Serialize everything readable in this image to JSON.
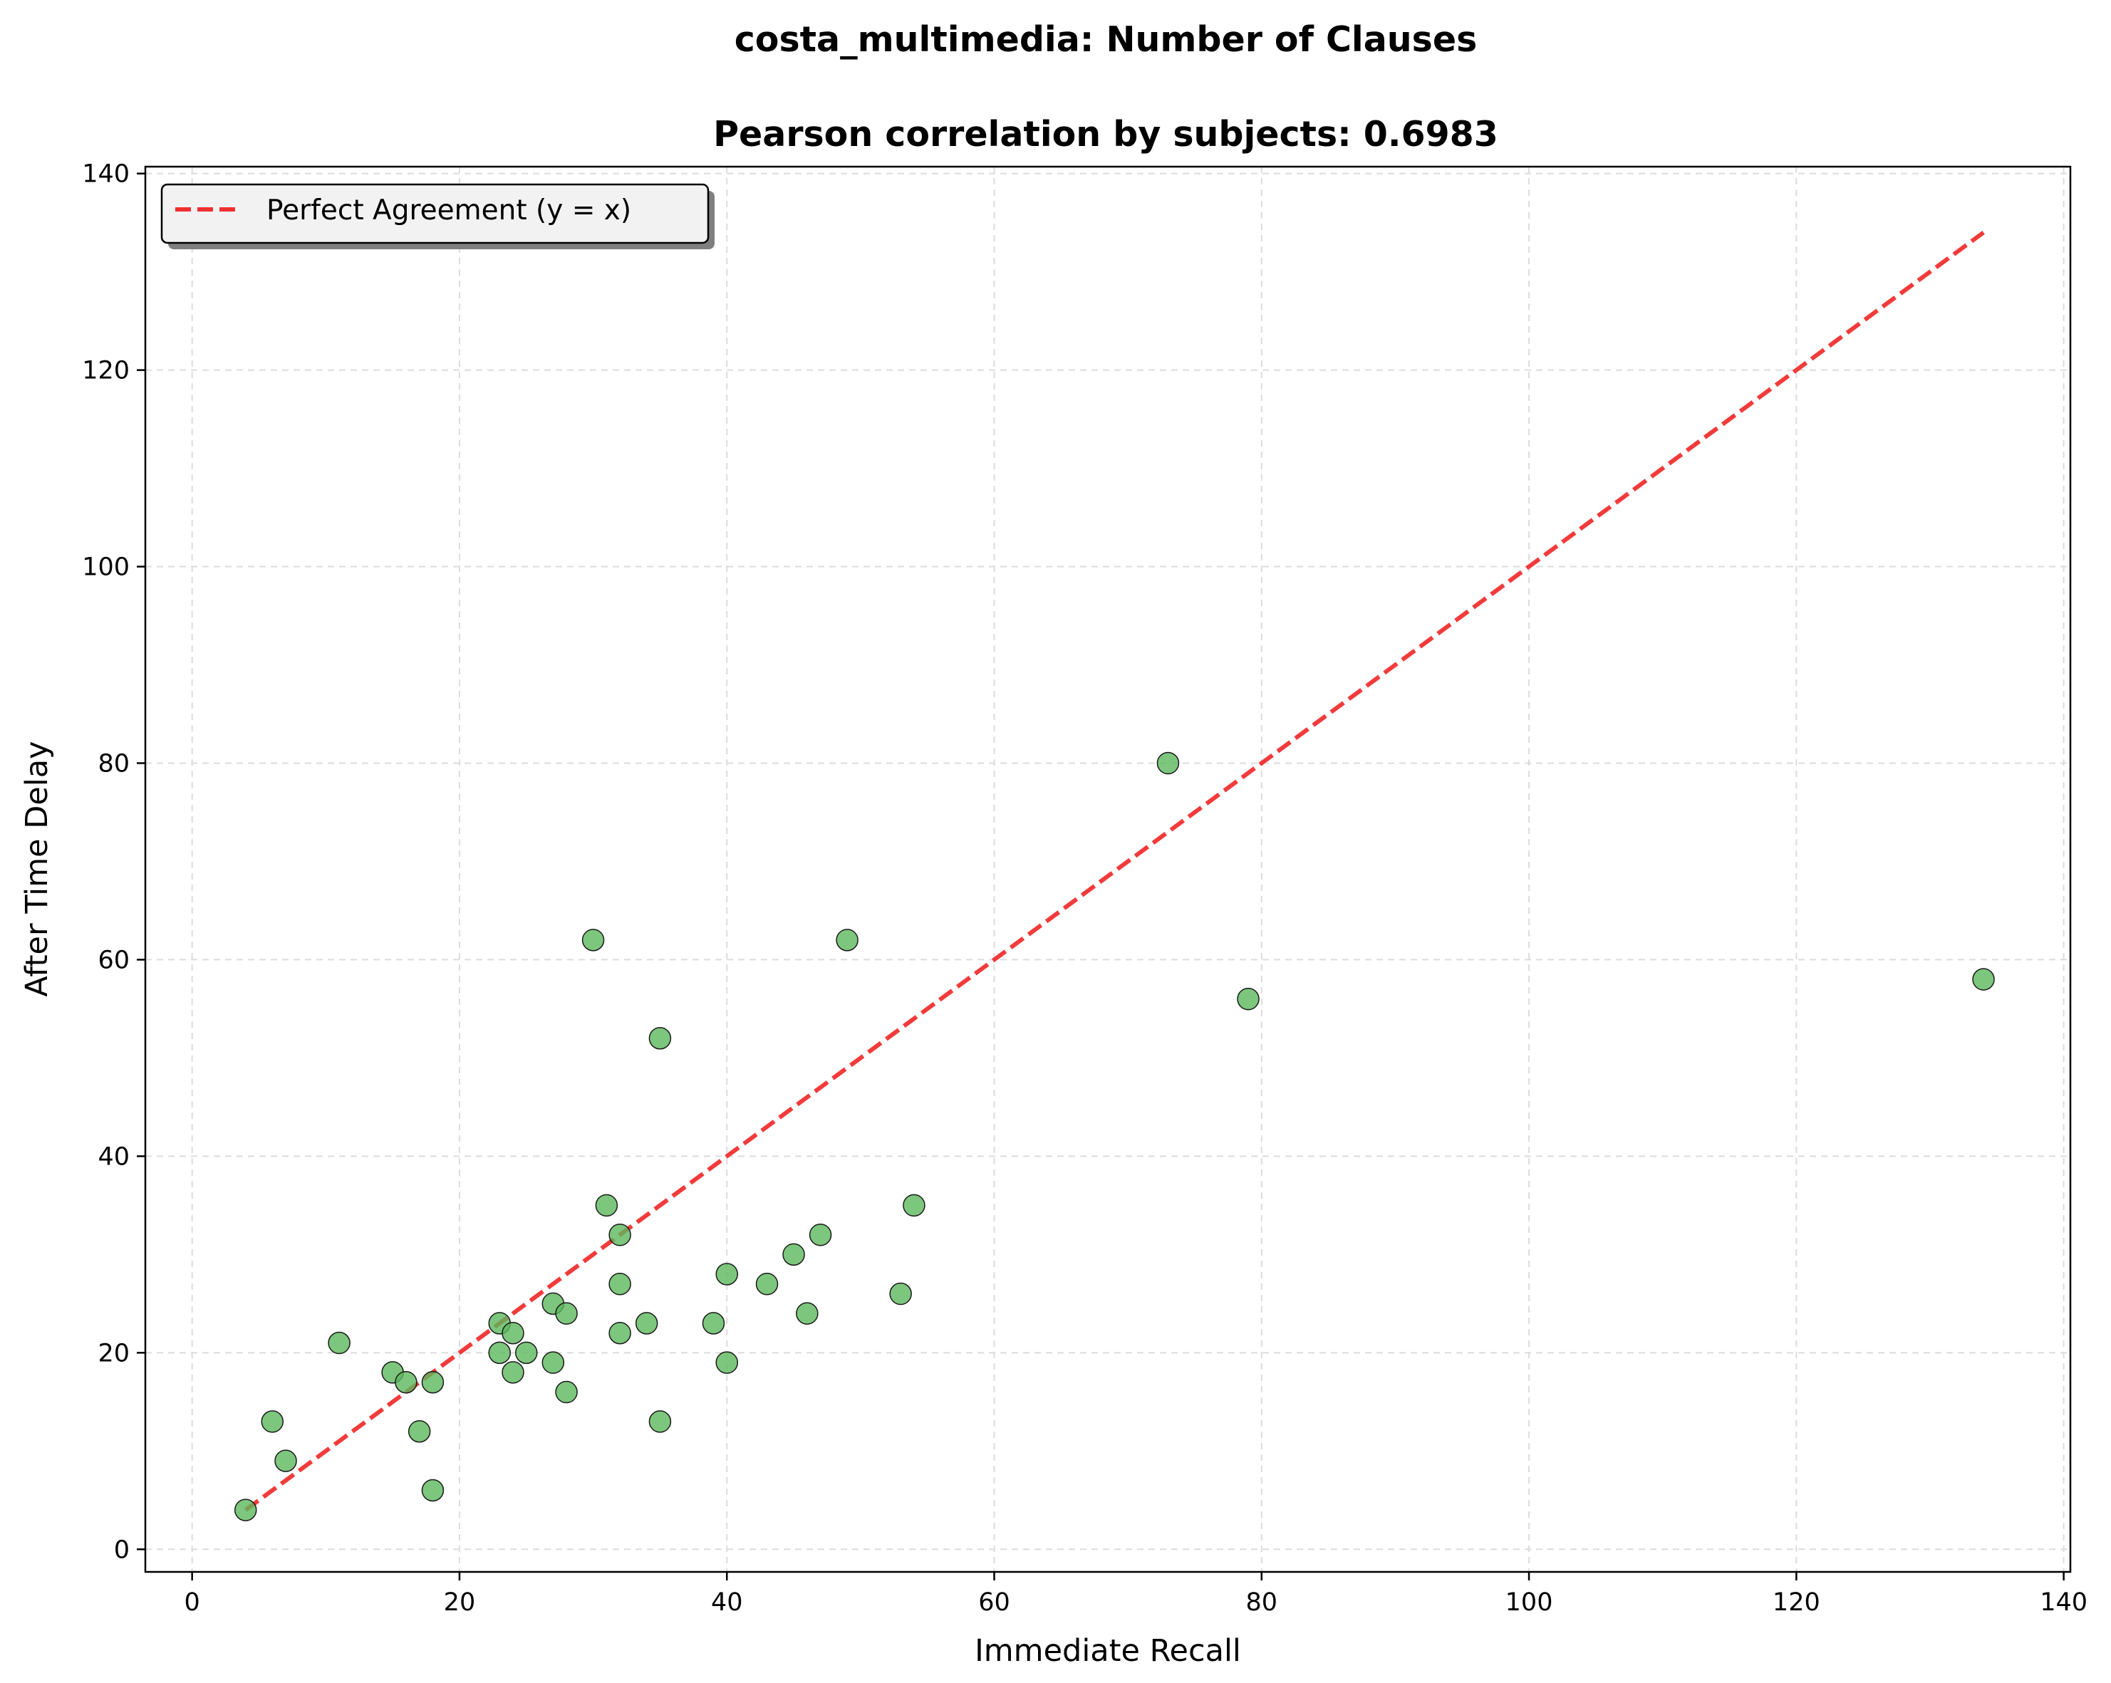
{
  "chart_data": {
    "type": "scatter",
    "title": "costa_multimedia: Number of Clauses",
    "subtitle": "Pearson correlation by subjects: 0.6983",
    "xlabel": "Immediate Recall",
    "ylabel": "After Time Delay",
    "xlim": [
      -3.5,
      140.5
    ],
    "ylim": [
      -2.3,
      140.7
    ],
    "xticks": [
      0,
      20,
      40,
      60,
      80,
      100,
      120,
      140
    ],
    "yticks": [
      0,
      20,
      40,
      60,
      80,
      100,
      120,
      140
    ],
    "grid": true,
    "legend": {
      "placement": "top-left",
      "entries": [
        "Perfect Agreement (y = x)"
      ]
    },
    "colors": {
      "points": "#5cb85c",
      "point_edge": "#1a1a1a",
      "reference_line": "#f03030",
      "grid": "#dcdcdc"
    },
    "reference_line": {
      "from": [
        4,
        4
      ],
      "to": [
        134,
        134
      ],
      "style": "dashed"
    },
    "points": [
      {
        "x": 4,
        "y": 4
      },
      {
        "x": 6,
        "y": 13
      },
      {
        "x": 7,
        "y": 9
      },
      {
        "x": 11,
        "y": 21
      },
      {
        "x": 15,
        "y": 18
      },
      {
        "x": 16,
        "y": 17
      },
      {
        "x": 17,
        "y": 12
      },
      {
        "x": 18,
        "y": 17
      },
      {
        "x": 18,
        "y": 6
      },
      {
        "x": 23,
        "y": 23
      },
      {
        "x": 23,
        "y": 20
      },
      {
        "x": 24,
        "y": 22
      },
      {
        "x": 24,
        "y": 18
      },
      {
        "x": 25,
        "y": 20
      },
      {
        "x": 27,
        "y": 25
      },
      {
        "x": 27,
        "y": 19
      },
      {
        "x": 28,
        "y": 24
      },
      {
        "x": 28,
        "y": 16
      },
      {
        "x": 30,
        "y": 62
      },
      {
        "x": 31,
        "y": 35
      },
      {
        "x": 32,
        "y": 32
      },
      {
        "x": 32,
        "y": 27
      },
      {
        "x": 32,
        "y": 22
      },
      {
        "x": 34,
        "y": 23
      },
      {
        "x": 35,
        "y": 52
      },
      {
        "x": 35,
        "y": 13
      },
      {
        "x": 39,
        "y": 23
      },
      {
        "x": 40,
        "y": 28
      },
      {
        "x": 40,
        "y": 19
      },
      {
        "x": 43,
        "y": 27
      },
      {
        "x": 45,
        "y": 30
      },
      {
        "x": 46,
        "y": 24
      },
      {
        "x": 47,
        "y": 32
      },
      {
        "x": 49,
        "y": 62
      },
      {
        "x": 53,
        "y": 26
      },
      {
        "x": 54,
        "y": 35
      },
      {
        "x": 73,
        "y": 80
      },
      {
        "x": 79,
        "y": 56
      },
      {
        "x": 134,
        "y": 58
      }
    ]
  }
}
